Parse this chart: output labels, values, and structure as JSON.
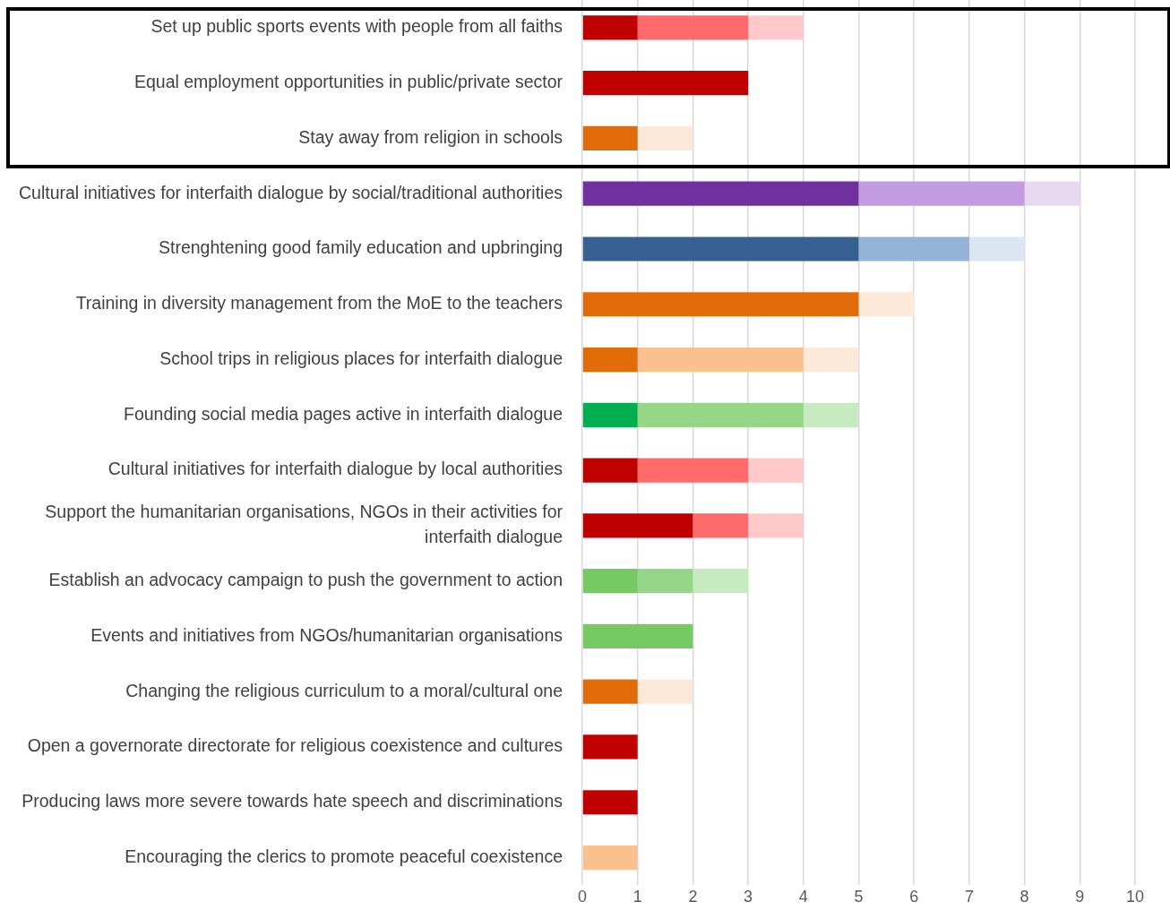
{
  "chart_data": {
    "type": "bar",
    "orientation": "horizontal",
    "stacked": true,
    "grid": "x",
    "categories": [
      "Set up public sports events with people from all faiths",
      "Equal employment opportunities in public/private sector",
      "Stay away from religion in schools",
      "Cultural initiatives for interfaith dialogue by social/traditional authorities",
      "Strenghtening good family education and upbringing",
      "Training in diversity management from the MoE to the teachers",
      "School trips in religious places for interfaith dialogue",
      "Founding social media pages active in interfaith dialogue",
      "Cultural initiatives for interfaith dialogue by local authorities",
      "Support the humanitarian organisations, NGOs in their activities for interfaith dialogue",
      "Establish an advocacy campaign to push the government to action",
      "Events and initiatives from NGOs/humanitarian organisations",
      "Changing the religious curriculum to a moral/cultural one",
      "Open a governorate directorate for religious coexistence and cultures",
      "Producing laws more severe towards hate speech and discriminations",
      "Encouraging the clerics to promote peaceful coexistence"
    ],
    "series": [
      {
        "values": [
          1,
          3,
          1,
          5,
          5,
          5,
          1,
          1,
          1,
          2,
          1,
          2,
          1,
          1,
          1,
          1
        ],
        "colors": [
          "#c00000",
          "#c00000",
          "#e36c0a",
          "#7030a0",
          "#376092",
          "#e36c0a",
          "#e36c0a",
          "#00b050",
          "#c00000",
          "#c00000",
          "#77c964",
          "#77c964",
          "#e36c0a",
          "#c00000",
          "#c00000",
          "#fac090"
        ]
      },
      {
        "values": [
          2,
          null,
          null,
          3,
          2,
          null,
          3,
          3,
          2,
          1,
          1,
          null,
          null,
          null,
          null,
          null
        ],
        "colors": [
          "#ff6b6b",
          "#ff6b6b",
          "#fac090",
          "#c39be0",
          "#95b3d7",
          "#fac090",
          "#fac090",
          "#96d787",
          "#ff6b6b",
          "#ff6b6b",
          "#96d787",
          "#96d787",
          "#fac090",
          "#ff6b6b",
          "#ff6b6b",
          "#fac090"
        ]
      },
      {
        "values": [
          1,
          null,
          1,
          1,
          1,
          1,
          1,
          1,
          1,
          1,
          1,
          null,
          1,
          null,
          null,
          null
        ],
        "colors": [
          "#ffc9c9",
          "#ffc9c9",
          "#fde9d9",
          "#e8d9f3",
          "#dce6f2",
          "#fde9d9",
          "#fde9d9",
          "#c6ebc0",
          "#ffc9c9",
          "#ffc9c9",
          "#c6ebc0",
          "#c6ebc0",
          "#fde9d9",
          "#ffc9c9",
          "#ffc9c9",
          "#fde9d9"
        ]
      }
    ],
    "xlim": [
      0,
      10
    ],
    "xticks": [
      0,
      1,
      2,
      3,
      4,
      5,
      6,
      7,
      8,
      9,
      10
    ]
  }
}
